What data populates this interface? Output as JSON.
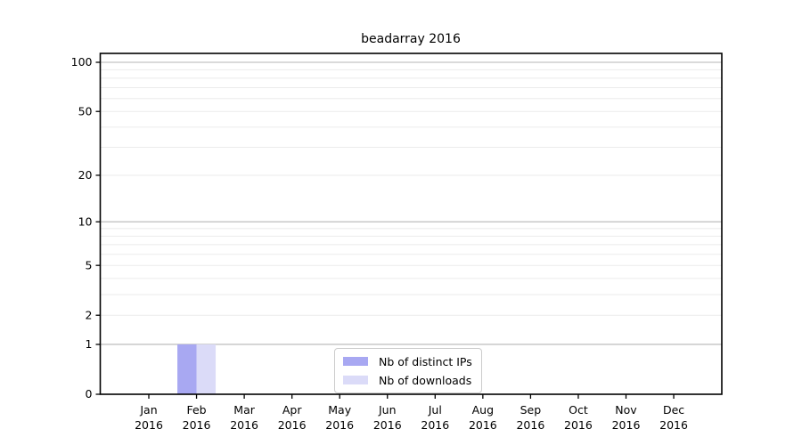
{
  "chart_data": {
    "type": "bar",
    "title": "beadarray 2016",
    "categories": [
      {
        "month": "Jan",
        "year": "2016"
      },
      {
        "month": "Feb",
        "year": "2016"
      },
      {
        "month": "Mar",
        "year": "2016"
      },
      {
        "month": "Apr",
        "year": "2016"
      },
      {
        "month": "May",
        "year": "2016"
      },
      {
        "month": "Jun",
        "year": "2016"
      },
      {
        "month": "Jul",
        "year": "2016"
      },
      {
        "month": "Aug",
        "year": "2016"
      },
      {
        "month": "Sep",
        "year": "2016"
      },
      {
        "month": "Oct",
        "year": "2016"
      },
      {
        "month": "Nov",
        "year": "2016"
      },
      {
        "month": "Dec",
        "year": "2016"
      }
    ],
    "series": [
      {
        "name": "Nb of distinct IPs",
        "color": "#a8a8f2",
        "values": [
          0,
          1,
          0,
          0,
          0,
          0,
          0,
          0,
          0,
          0,
          0,
          0
        ]
      },
      {
        "name": "Nb of downloads",
        "color": "#dbdbf8",
        "values": [
          0,
          1,
          0,
          0,
          0,
          0,
          0,
          0,
          0,
          0,
          0,
          0
        ]
      }
    ],
    "xlabel": "",
    "ylabel": "",
    "y_axis": {
      "scale": "log1p",
      "tick_values": [
        0,
        1,
        2,
        5,
        10,
        20,
        50,
        100
      ],
      "major_gridlines": [
        1,
        10,
        100
      ],
      "minor_gridlines": [
        2,
        3,
        4,
        5,
        6,
        7,
        8,
        9,
        20,
        30,
        40,
        50,
        60,
        70,
        80,
        90
      ],
      "ylim": [
        0,
        113
      ]
    },
    "legend": {
      "position": "bottom-center",
      "entries": [
        "Nb of distinct IPs",
        "Nb of downloads"
      ]
    },
    "colors": {
      "axis": "#000000",
      "major_grid": "#b5b5b5",
      "minor_grid": "#ebebeb",
      "tick_label": "#000000"
    }
  }
}
